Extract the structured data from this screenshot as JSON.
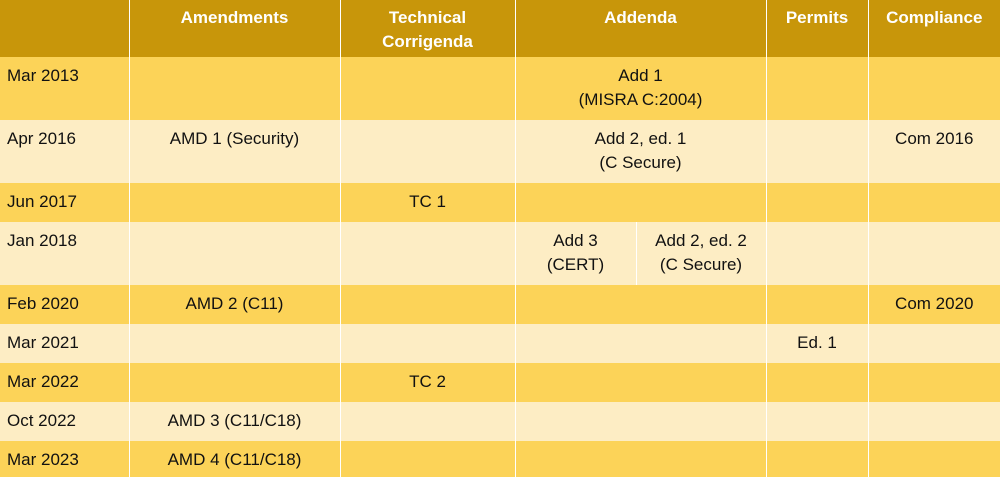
{
  "header": {
    "date": "",
    "amendments": "Amendments",
    "technical_corrigenda": "Technical\nCorrigenda",
    "addenda": "Addenda",
    "permits": "Permits",
    "compliance": "Compliance"
  },
  "rows": [
    {
      "date": "Mar 2013",
      "amendments": "",
      "tc": "",
      "addenda_a": "Add 1\n(MISRA C:2004)",
      "addenda_b": "",
      "permits": "",
      "compliance": ""
    },
    {
      "date": "Apr 2016",
      "amendments": "AMD 1 (Security)",
      "tc": "",
      "addenda_a": "Add 2, ed. 1\n(C Secure)",
      "addenda_b": "",
      "permits": "",
      "compliance": "Com 2016"
    },
    {
      "date": "Jun 2017",
      "amendments": "",
      "tc": "TC 1",
      "addenda_a": "",
      "addenda_b": "",
      "permits": "",
      "compliance": ""
    },
    {
      "date": "Jan 2018",
      "amendments": "",
      "tc": "",
      "addenda_a": "Add 3\n(CERT)",
      "addenda_b": "Add 2, ed. 2\n(C Secure)",
      "permits": "",
      "compliance": ""
    },
    {
      "date": "Feb 2020",
      "amendments": "AMD 2 (C11)",
      "tc": "",
      "addenda_a": "",
      "addenda_b": "",
      "permits": "",
      "compliance": "Com 2020"
    },
    {
      "date": "Mar 2021",
      "amendments": "",
      "tc": "",
      "addenda_a": "",
      "addenda_b": "",
      "permits": "Ed. 1",
      "compliance": ""
    },
    {
      "date": "Mar 2022",
      "amendments": "",
      "tc": "TC 2",
      "addenda_a": "",
      "addenda_b": "",
      "permits": "",
      "compliance": ""
    },
    {
      "date": "Oct 2022",
      "amendments": "AMD 3 (C11/C18)",
      "tc": "",
      "addenda_a": "",
      "addenda_b": "",
      "permits": "",
      "compliance": ""
    },
    {
      "date": "Mar 2023",
      "amendments": "AMD 4 (C11/C18)",
      "tc": "",
      "addenda_a": "",
      "addenda_b": "",
      "permits": "",
      "compliance": ""
    }
  ],
  "colors": {
    "header_bg": "#c8960a",
    "row_dark": "#fcd358",
    "row_light": "#fdedc4"
  }
}
